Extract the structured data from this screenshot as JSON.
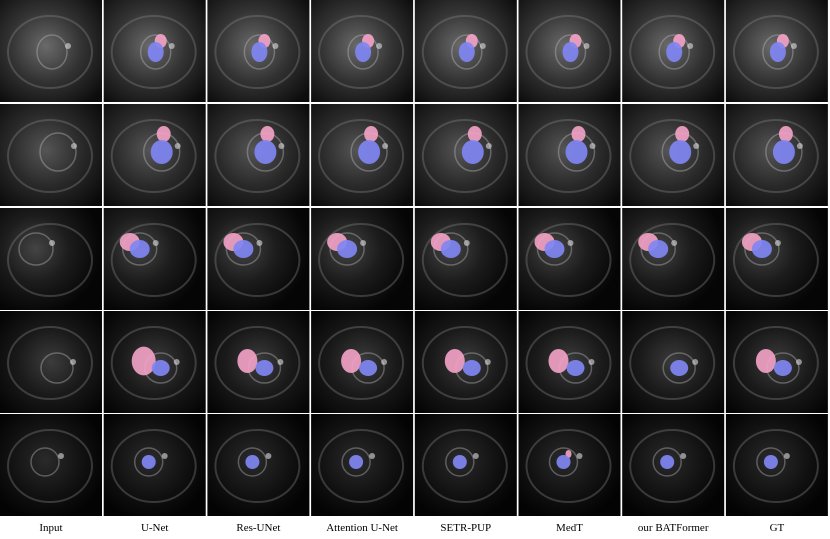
{
  "figure": {
    "column_labels": [
      "Input",
      "U-Net",
      "Res-UNet",
      "Attention U-Net",
      "SETR-PUP",
      "MedT",
      "our BATFormer",
      "GT"
    ]
  }
}
